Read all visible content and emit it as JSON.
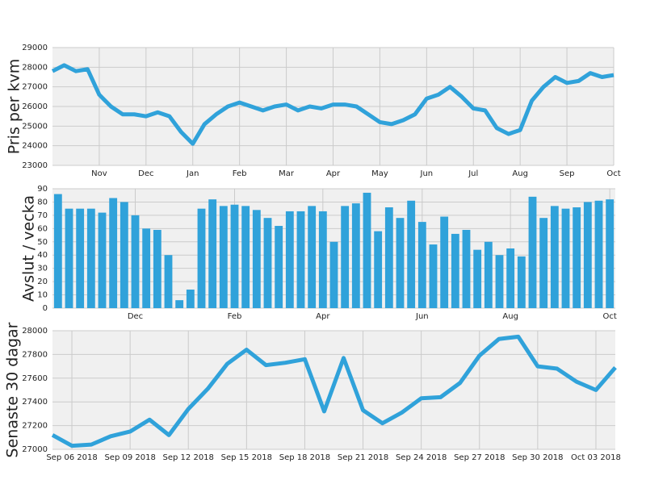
{
  "chart_data": [
    {
      "type": "line",
      "ylabel": "Pris per kvm",
      "color": "#30a2da",
      "grid": true,
      "categories": [
        null,
        null,
        null,
        null,
        "Nov",
        null,
        null,
        null,
        "Dec",
        null,
        null,
        null,
        "Jan",
        null,
        null,
        null,
        "Feb",
        null,
        null,
        null,
        "Mar",
        null,
        null,
        null,
        "Apr",
        null,
        null,
        null,
        "May",
        null,
        null,
        null,
        "Jun",
        null,
        null,
        null,
        "Jul",
        null,
        null,
        null,
        "Aug",
        null,
        null,
        null,
        "Sep",
        null,
        null,
        null,
        "Oct"
      ],
      "values": [
        27800,
        28100,
        27800,
        27900,
        26600,
        26000,
        25600,
        25600,
        25500,
        25700,
        25500,
        24700,
        24100,
        25100,
        25600,
        26000,
        26200,
        26000,
        25800,
        26000,
        26100,
        25800,
        26000,
        25900,
        26100,
        26100,
        26000,
        25600,
        25200,
        25100,
        25300,
        25600,
        26400,
        26600,
        27000,
        26500,
        25900,
        25800,
        24900,
        24600,
        24800,
        26300,
        27000,
        27500,
        27200,
        27300,
        27700,
        27500,
        27600
      ],
      "ylim": [
        23000,
        29000
      ],
      "yticks": [
        23000,
        24000,
        25000,
        26000,
        27000,
        28000,
        29000
      ]
    },
    {
      "type": "bar",
      "ylabel": "Avslut / vecka",
      "color": "#30a2da",
      "grid": true,
      "categories": [
        null,
        null,
        null,
        null,
        null,
        null,
        null,
        "Dec",
        null,
        null,
        null,
        null,
        null,
        null,
        null,
        null,
        "Feb",
        null,
        null,
        null,
        null,
        null,
        null,
        null,
        "Apr",
        null,
        null,
        null,
        null,
        null,
        null,
        null,
        null,
        "Jun",
        null,
        null,
        null,
        null,
        null,
        null,
        null,
        "Aug",
        null,
        null,
        null,
        null,
        null,
        null,
        null,
        null,
        "Oct"
      ],
      "values": [
        86,
        75,
        75,
        75,
        72,
        83,
        80,
        70,
        60,
        59,
        40,
        6,
        14,
        75,
        82,
        77,
        78,
        77,
        74,
        68,
        62,
        73,
        73,
        77,
        73,
        50,
        77,
        79,
        87,
        58,
        76,
        68,
        81,
        65,
        48,
        69,
        56,
        59,
        44,
        50,
        40,
        45,
        39,
        84,
        68,
        77,
        75,
        76,
        80,
        81,
        82
      ],
      "ylim": [
        0,
        90
      ],
      "yticks": [
        0,
        10,
        20,
        30,
        40,
        50,
        60,
        70,
        80,
        90
      ]
    },
    {
      "type": "line",
      "ylabel": "Senaste 30 dagar",
      "color": "#30a2da",
      "grid": true,
      "categories": [
        null,
        "Sep 06 2018",
        null,
        null,
        "Sep 09 2018",
        null,
        null,
        "Sep 12 2018",
        null,
        null,
        "Sep 15 2018",
        null,
        null,
        "Sep 18 2018",
        null,
        null,
        "Sep 21 2018",
        null,
        null,
        "Sep 24 2018",
        null,
        null,
        "Sep 27 2018",
        null,
        null,
        "Sep 30 2018",
        null,
        null,
        "Oct 03 2018",
        null
      ],
      "values": [
        27120,
        27030,
        27040,
        27110,
        27150,
        27250,
        27120,
        27340,
        27510,
        27720,
        27840,
        27710,
        27730,
        27760,
        27320,
        27770,
        27330,
        27220,
        27310,
        27430,
        27440,
        27560,
        27790,
        27930,
        27950,
        27700,
        27680,
        27570,
        27500,
        27690
      ],
      "ylim": [
        27000,
        28000
      ],
      "yticks": [
        27000,
        27200,
        27400,
        27600,
        27800,
        28000
      ]
    }
  ]
}
